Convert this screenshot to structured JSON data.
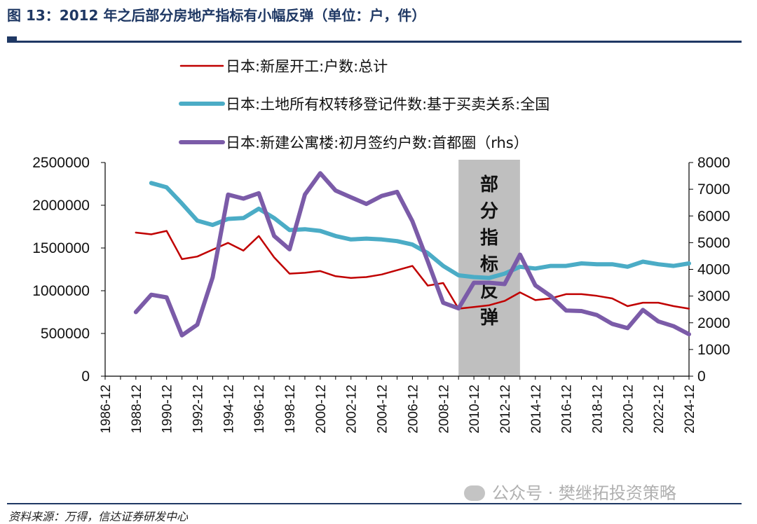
{
  "header": {
    "title": "图 13：2012 年之后部分房地产指标有小幅反弹（单位：户，件）"
  },
  "footer": {
    "source": "资料来源：万得，信达证券研发中心",
    "watermark": "公众号 · 樊继拓投资策略",
    "watermark_icon": "wechat-icon"
  },
  "chart_data": {
    "type": "line",
    "x_ticks": [
      "1986-12",
      "1988-12",
      "1990-12",
      "1992-12",
      "1994-12",
      "1996-12",
      "1998-12",
      "2000-12",
      "2002-12",
      "2004-12",
      "2006-12",
      "2008-12",
      "2010-12",
      "2012-12",
      "2014-12",
      "2016-12",
      "2018-12",
      "2020-12",
      "2022-12",
      "2024-12"
    ],
    "x_range": [
      1986,
      2024
    ],
    "y_left": {
      "range": [
        0,
        2500000
      ],
      "ticks": [
        "0",
        "500000",
        "1000000",
        "1500000",
        "2000000",
        "2500000"
      ]
    },
    "y_right": {
      "range": [
        0,
        8000
      ],
      "ticks": [
        "0",
        "1000",
        "2000",
        "3000",
        "4000",
        "5000",
        "6000",
        "7000",
        "8000"
      ]
    },
    "grid": false,
    "legend_position": "top",
    "annotation": {
      "text": "部分指标反弹",
      "chars": [
        "部",
        "分",
        "指",
        "标",
        "反",
        "弹"
      ],
      "x_start": 2009,
      "x_end": 2013,
      "fill": "#bfbfbf"
    },
    "series": [
      {
        "name": "日本:新屋开工:户数:总计",
        "axis": "left",
        "color": "#c00000",
        "x": [
          1988,
          1989,
          1990,
          1991,
          1992,
          1993,
          1994,
          1995,
          1996,
          1997,
          1998,
          1999,
          2000,
          2001,
          2002,
          2003,
          2004,
          2005,
          2006,
          2007,
          2008,
          2009,
          2010,
          2011,
          2012,
          2013,
          2014,
          2015,
          2016,
          2017,
          2018,
          2019,
          2020,
          2021,
          2022,
          2023,
          2024
        ],
        "values": [
          1680000,
          1660000,
          1700000,
          1370000,
          1400000,
          1480000,
          1560000,
          1470000,
          1640000,
          1390000,
          1200000,
          1210000,
          1230000,
          1170000,
          1150000,
          1160000,
          1190000,
          1240000,
          1290000,
          1060000,
          1090000,
          790000,
          810000,
          830000,
          880000,
          980000,
          890000,
          910000,
          960000,
          960000,
          940000,
          910000,
          820000,
          860000,
          860000,
          820000,
          790000
        ]
      },
      {
        "name": "日本:土地所有权转移登记件数:基于买卖关系:全国",
        "axis": "left",
        "color": "#4bacc6",
        "x": [
          1989,
          1990,
          1991,
          1992,
          1993,
          1994,
          1995,
          1996,
          1997,
          1998,
          1999,
          2000,
          2001,
          2002,
          2003,
          2004,
          2005,
          2006,
          2007,
          2008,
          2009,
          2010,
          2011,
          2012,
          2013,
          2014,
          2015,
          2016,
          2017,
          2018,
          2019,
          2020,
          2021,
          2022,
          2023,
          2024
        ],
        "values": [
          2260000,
          2210000,
          2020000,
          1820000,
          1770000,
          1840000,
          1850000,
          1960000,
          1850000,
          1710000,
          1720000,
          1700000,
          1640000,
          1600000,
          1610000,
          1600000,
          1580000,
          1540000,
          1440000,
          1290000,
          1180000,
          1160000,
          1150000,
          1200000,
          1280000,
          1260000,
          1290000,
          1290000,
          1320000,
          1310000,
          1310000,
          1280000,
          1340000,
          1310000,
          1290000,
          1320000
        ]
      },
      {
        "name": "日本:新建公寓楼:初月签约户数:首都圈（rhs）",
        "axis": "right",
        "color": "#7b5ba8",
        "x": [
          1988,
          1989,
          1990,
          1991,
          1992,
          1993,
          1994,
          1995,
          1996,
          1997,
          1998,
          1999,
          2000,
          2001,
          2002,
          2003,
          2004,
          2005,
          2006,
          2007,
          2008,
          2009,
          2010,
          2011,
          2012,
          2013,
          2014,
          2015,
          2016,
          2017,
          2018,
          2019,
          2020,
          2021,
          2022,
          2023,
          2024
        ],
        "values": [
          2400,
          3050,
          2950,
          1530,
          1930,
          3700,
          6800,
          6650,
          6850,
          5250,
          4750,
          6800,
          7600,
          6950,
          6700,
          6450,
          6750,
          6900,
          5800,
          4300,
          2750,
          2540,
          3500,
          3500,
          3450,
          4550,
          3400,
          3000,
          2460,
          2440,
          2290,
          1960,
          1800,
          2480,
          2050,
          1870,
          1570
        ]
      }
    ]
  }
}
